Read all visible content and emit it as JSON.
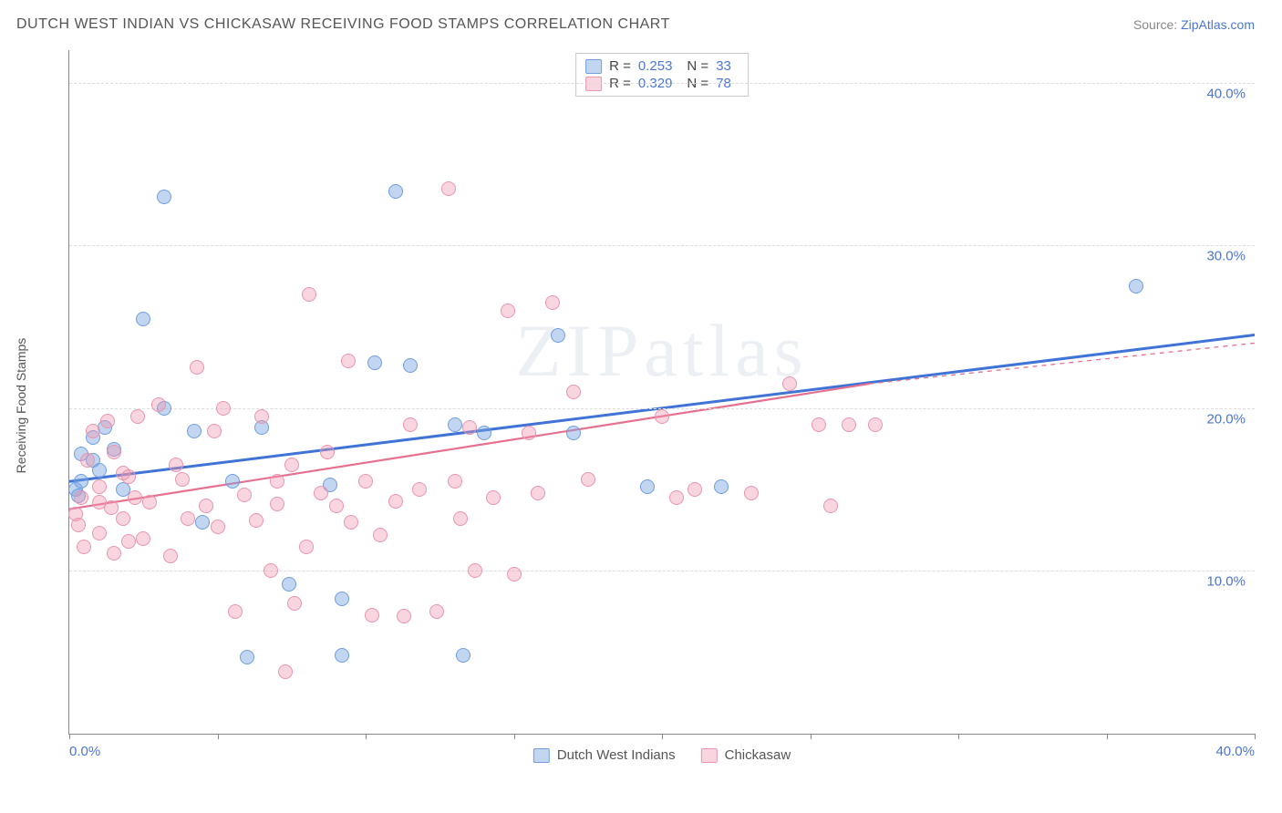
{
  "title": "DUTCH WEST INDIAN VS CHICKASAW RECEIVING FOOD STAMPS CORRELATION CHART",
  "source_prefix": "Source: ",
  "source_name": "ZipAtlas.com",
  "ylabel": "Receiving Food Stamps",
  "watermark": "ZIPatlas",
  "chart": {
    "type": "scatter",
    "xlim": [
      0,
      40
    ],
    "ylim": [
      0,
      42
    ],
    "ytick_values": [
      10,
      20,
      30,
      40
    ],
    "ytick_labels": [
      "10.0%",
      "20.0%",
      "30.0%",
      "40.0%"
    ],
    "xtick_values": [
      0,
      5,
      10,
      15,
      20,
      25,
      30,
      35,
      40
    ],
    "xtick_show_labels": {
      "0": "0.0%",
      "40": "40.0%"
    },
    "grid_color": "#dcdcdc",
    "background_color": "#ffffff",
    "point_radius": 8,
    "series": [
      {
        "name": "Dutch West Indians",
        "fill": "rgba(120,165,225,0.45)",
        "stroke": "#6e9de0",
        "trend_color": "#3f73d6",
        "trend_width": 3,
        "trend": {
          "x1": 0,
          "y1": 15.5,
          "x2": 40,
          "y2": 24.5
        },
        "r_value": "0.253",
        "n_value": "33",
        "points": [
          [
            0.2,
            15
          ],
          [
            0.3,
            14.6
          ],
          [
            0.4,
            15.5
          ],
          [
            0.4,
            17.2
          ],
          [
            0.8,
            16.8
          ],
          [
            0.8,
            18.2
          ],
          [
            1,
            16.2
          ],
          [
            1.2,
            18.8
          ],
          [
            1.5,
            17.5
          ],
          [
            2.5,
            25.5
          ],
          [
            3.2,
            33
          ],
          [
            3.2,
            20
          ],
          [
            4.2,
            18.6
          ],
          [
            4.5,
            13
          ],
          [
            5.5,
            15.5
          ],
          [
            6,
            4.7
          ],
          [
            6.5,
            18.8
          ],
          [
            7.4,
            9.2
          ],
          [
            8.8,
            15.3
          ],
          [
            9.2,
            4.8
          ],
          [
            9.2,
            8.3
          ],
          [
            10.3,
            22.8
          ],
          [
            11,
            33.3
          ],
          [
            11.5,
            22.6
          ],
          [
            13,
            19
          ],
          [
            13.3,
            4.8
          ],
          [
            14,
            18.5
          ],
          [
            16.5,
            24.5
          ],
          [
            17,
            18.5
          ],
          [
            19.5,
            15.2
          ],
          [
            22,
            15.2
          ],
          [
            36,
            27.5
          ],
          [
            1.8,
            15.0
          ]
        ]
      },
      {
        "name": "Chickasaw",
        "fill": "rgba(240,150,175,0.40)",
        "stroke": "#ea94ac",
        "trend_color": "#e6718f",
        "trend_width": 2.2,
        "trend": {
          "x1": 0,
          "y1": 13.8,
          "x2": 27,
          "y2": 21.5
        },
        "trend_dash_from_x": 27,
        "trend_dash_to": {
          "x": 40,
          "y": 24.0
        },
        "r_value": "0.329",
        "n_value": "78",
        "points": [
          [
            0.2,
            13.5
          ],
          [
            0.3,
            12.8
          ],
          [
            0.4,
            14.5
          ],
          [
            0.5,
            11.5
          ],
          [
            0.6,
            16.8
          ],
          [
            0.8,
            18.6
          ],
          [
            1,
            14.2
          ],
          [
            1,
            12.3
          ],
          [
            1,
            15.2
          ],
          [
            1.3,
            19.2
          ],
          [
            1.4,
            13.9
          ],
          [
            1.5,
            11.1
          ],
          [
            1.5,
            17.3
          ],
          [
            1.8,
            13.2
          ],
          [
            1.8,
            16.0
          ],
          [
            2,
            15.8
          ],
          [
            2,
            11.8
          ],
          [
            2.2,
            14.5
          ],
          [
            2.3,
            19.5
          ],
          [
            2.5,
            12.0
          ],
          [
            2.7,
            14.2
          ],
          [
            3,
            20.2
          ],
          [
            3.4,
            10.9
          ],
          [
            3.6,
            16.5
          ],
          [
            3.8,
            15.6
          ],
          [
            4,
            13.2
          ],
          [
            4.3,
            22.5
          ],
          [
            4.6,
            14.0
          ],
          [
            4.9,
            18.6
          ],
          [
            5,
            12.7
          ],
          [
            5.2,
            20.0
          ],
          [
            5.6,
            7.5
          ],
          [
            5.9,
            14.7
          ],
          [
            6.3,
            13.1
          ],
          [
            6.5,
            19.5
          ],
          [
            6.8,
            10.0
          ],
          [
            7,
            15.5
          ],
          [
            7,
            14.1
          ],
          [
            7.3,
            3.8
          ],
          [
            7.5,
            16.5
          ],
          [
            7.6,
            8.0
          ],
          [
            8,
            11.5
          ],
          [
            8.1,
            27.0
          ],
          [
            8.5,
            14.8
          ],
          [
            8.7,
            17.3
          ],
          [
            9,
            14.0
          ],
          [
            9.4,
            22.9
          ],
          [
            9.5,
            13.0
          ],
          [
            10,
            15.5
          ],
          [
            10.2,
            7.3
          ],
          [
            10.5,
            12.2
          ],
          [
            11,
            14.3
          ],
          [
            11.3,
            7.2
          ],
          [
            11.5,
            19.0
          ],
          [
            11.8,
            15.0
          ],
          [
            12.4,
            7.5
          ],
          [
            12.8,
            33.5
          ],
          [
            13,
            15.5
          ],
          [
            13.2,
            13.2
          ],
          [
            13.5,
            18.8
          ],
          [
            13.7,
            10.0
          ],
          [
            14.3,
            14.5
          ],
          [
            14.8,
            26.0
          ],
          [
            15,
            9.8
          ],
          [
            15.5,
            18.5
          ],
          [
            15.8,
            14.8
          ],
          [
            16.3,
            26.5
          ],
          [
            17,
            21
          ],
          [
            17.5,
            15.6
          ],
          [
            20,
            19.5
          ],
          [
            20.5,
            14.5
          ],
          [
            21.1,
            15.0
          ],
          [
            23,
            14.8
          ],
          [
            24.3,
            21.5
          ],
          [
            25.3,
            19
          ],
          [
            25.7,
            14.0
          ],
          [
            26.3,
            19.0
          ],
          [
            27.2,
            19.0
          ]
        ]
      }
    ]
  },
  "stats_box_labels": {
    "r": "R =",
    "n": "N ="
  }
}
